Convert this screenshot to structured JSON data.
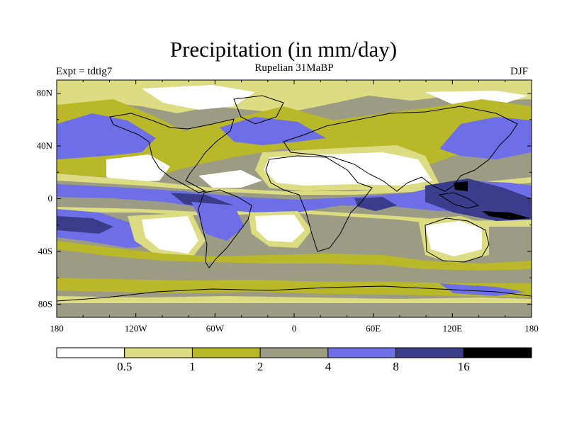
{
  "title": "Precipitation (in mm/day)",
  "subtitle": "Rupelian  31MaBP",
  "experiment_label": "Expt = tdtig7",
  "season_label": "DJF",
  "colors": {
    "c0": "#ffffff",
    "c1": "#dcdc82",
    "c2": "#b8b828",
    "c3": "#9c9c84",
    "c4": "#6e6ee6",
    "c5": "#3c3c8c",
    "c6": "#000000"
  },
  "map": {
    "lon_range": [
      -180,
      180
    ],
    "lat_range": [
      -90,
      90
    ],
    "x_ticks": [
      {
        "value": -180,
        "label": "180"
      },
      {
        "value": -120,
        "label": "120W"
      },
      {
        "value": -60,
        "label": "60W"
      },
      {
        "value": 0,
        "label": "0"
      },
      {
        "value": 60,
        "label": "60E"
      },
      {
        "value": 120,
        "label": "120E"
      },
      {
        "value": 180,
        "label": "180"
      }
    ],
    "y_ticks": [
      {
        "value": 80,
        "label": "80N"
      },
      {
        "value": 40,
        "label": "40N"
      },
      {
        "value": 0,
        "label": "0"
      },
      {
        "value": -40,
        "label": "40S"
      },
      {
        "value": -80,
        "label": "80S"
      }
    ]
  },
  "colorbar": {
    "thresholds": [
      "0.5",
      "1",
      "2",
      "4",
      "8",
      "16"
    ],
    "colors": [
      "#ffffff",
      "#dcdc82",
      "#b8b828",
      "#9c9c84",
      "#6e6ee6",
      "#3c3c8c",
      "#000000"
    ]
  }
}
